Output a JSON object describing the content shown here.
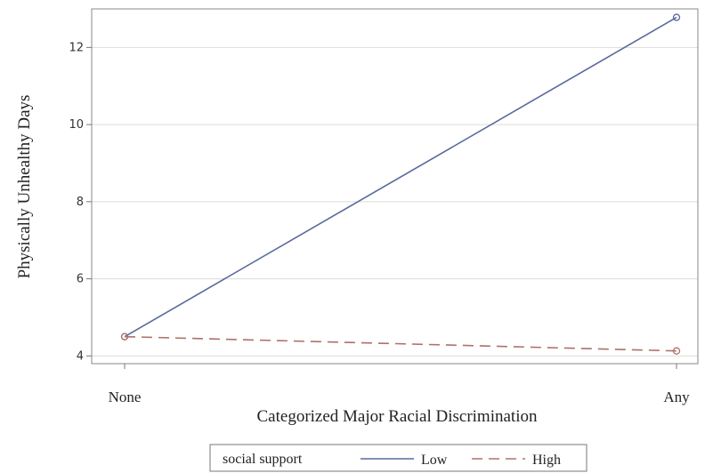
{
  "chart_data": {
    "type": "line",
    "categories": [
      "None",
      "Any"
    ],
    "series": [
      {
        "name": "Low",
        "values": [
          4.5,
          12.78
        ],
        "color": "#5a6a9e",
        "dash": "solid"
      },
      {
        "name": "High",
        "values": [
          4.5,
          4.13
        ],
        "color": "#b0706a",
        "dash": "dashed"
      }
    ],
    "xlabel": "Categorized Major Racial Discrimination",
    "ylabel": "Physically Unhealthy Days",
    "yticks": [
      4,
      6,
      8,
      10,
      12
    ],
    "ylim": [
      3.8,
      13.0
    ],
    "grid": true,
    "legend": {
      "title": "social support",
      "placement": "bottom"
    }
  }
}
